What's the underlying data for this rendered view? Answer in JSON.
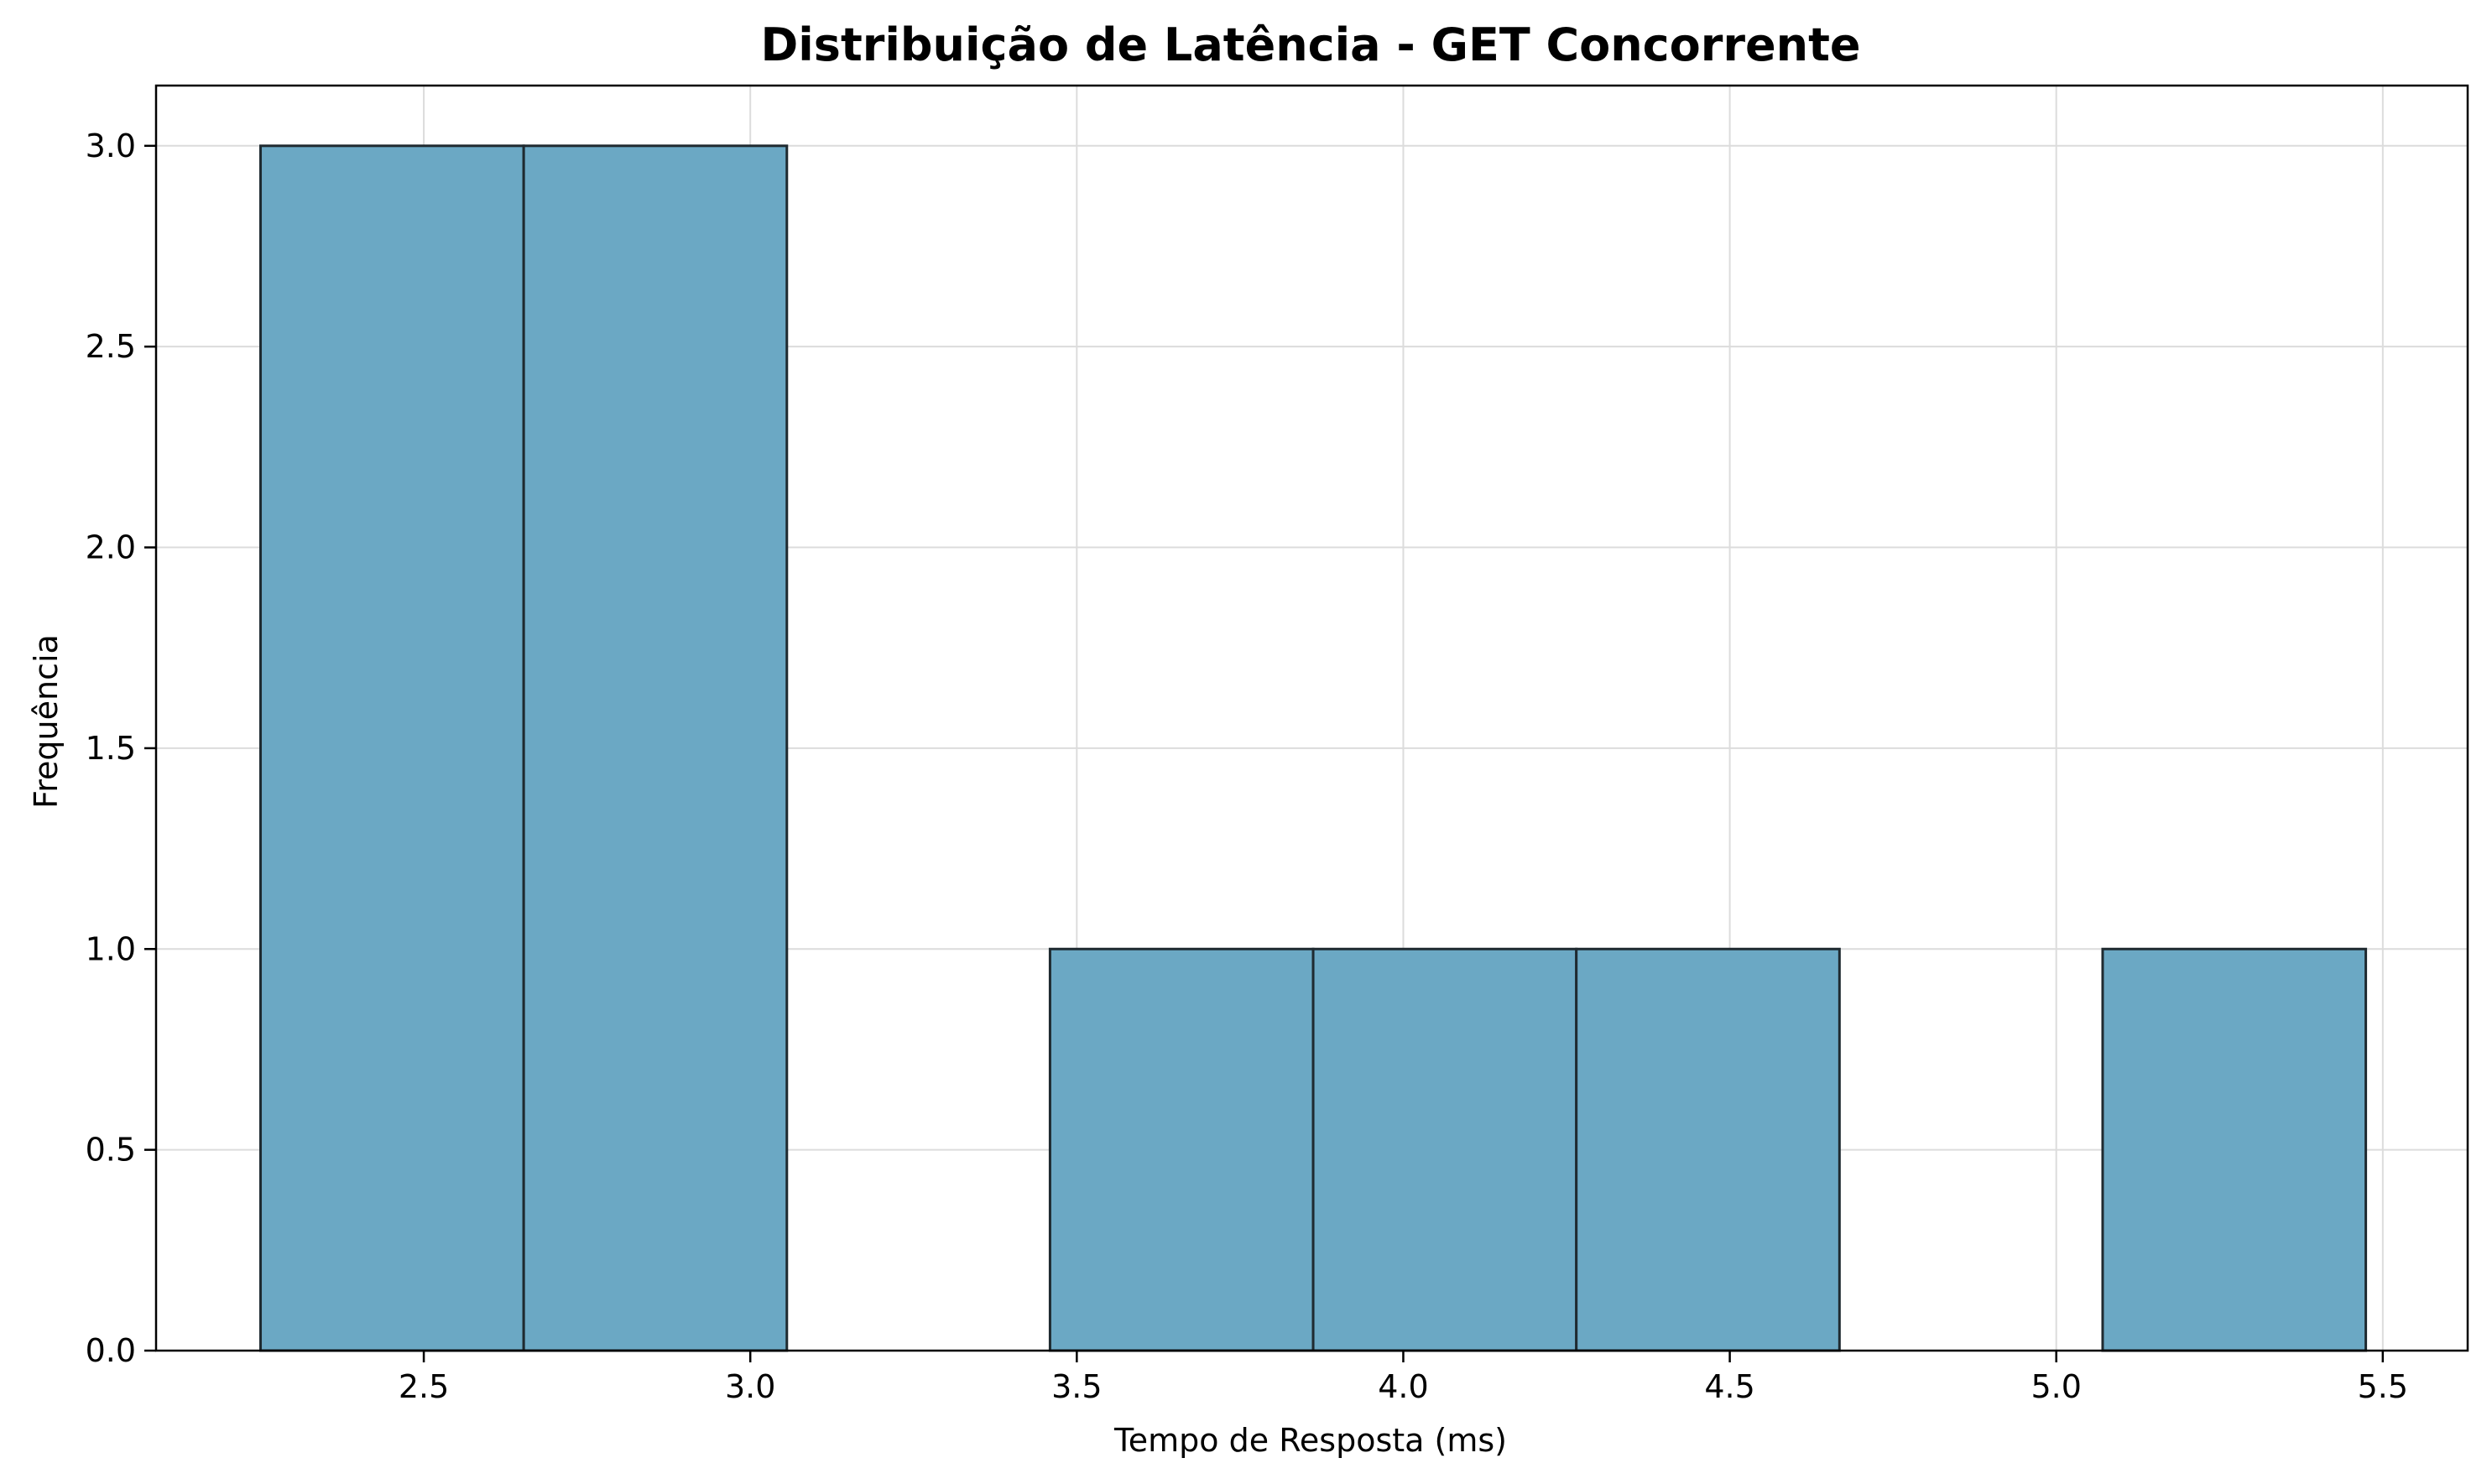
{
  "chart_data": {
    "type": "bar",
    "subtype": "histogram",
    "title": "Distribuição de Latência - GET Concorrente",
    "xlabel": "Tempo de Resposta (ms)",
    "ylabel": "Frequência",
    "xlim": [
      2.09,
      5.63
    ],
    "ylim": [
      0,
      3.15
    ],
    "grid": true,
    "bar_color": "#6ba8c4",
    "edge_color": "#1f2a30",
    "bins": [
      {
        "x0": 2.25,
        "x1": 2.653,
        "count": 3
      },
      {
        "x0": 2.653,
        "x1": 3.056,
        "count": 3
      },
      {
        "x0": 3.056,
        "x1": 3.459,
        "count": 0
      },
      {
        "x0": 3.459,
        "x1": 3.862,
        "count": 1
      },
      {
        "x0": 3.862,
        "x1": 4.265,
        "count": 1
      },
      {
        "x0": 4.265,
        "x1": 4.668,
        "count": 1
      },
      {
        "x0": 4.668,
        "x1": 5.071,
        "count": 0
      },
      {
        "x0": 5.071,
        "x1": 5.474,
        "count": 1
      }
    ],
    "x_ticks": [
      {
        "value": 2.5,
        "label": "2.5"
      },
      {
        "value": 3.0,
        "label": "3.0"
      },
      {
        "value": 3.5,
        "label": "3.5"
      },
      {
        "value": 4.0,
        "label": "4.0"
      },
      {
        "value": 4.5,
        "label": "4.5"
      },
      {
        "value": 5.0,
        "label": "5.0"
      },
      {
        "value": 5.5,
        "label": "5.5"
      }
    ],
    "y_ticks": [
      {
        "value": 0.0,
        "label": "0.0"
      },
      {
        "value": 0.5,
        "label": "0.5"
      },
      {
        "value": 1.0,
        "label": "1.0"
      },
      {
        "value": 1.5,
        "label": "1.5"
      },
      {
        "value": 2.0,
        "label": "2.0"
      },
      {
        "value": 2.5,
        "label": "2.5"
      },
      {
        "value": 3.0,
        "label": "3.0"
      }
    ]
  }
}
